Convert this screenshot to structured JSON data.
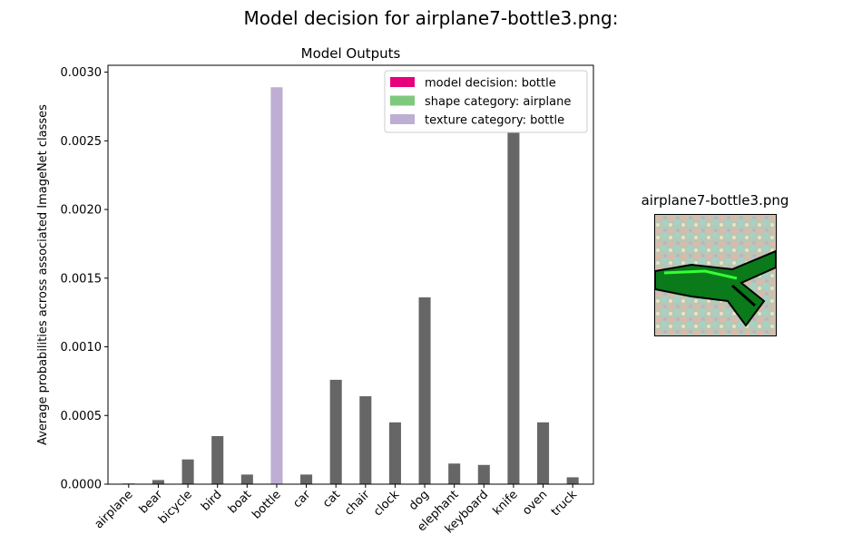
{
  "figure": {
    "suptitle": "Model decision for airplane7-bottle3.png:"
  },
  "chart_data": {
    "type": "bar",
    "title": "Model Outputs",
    "xlabel": "",
    "ylabel": "Average probabilities across associated ImageNet classes",
    "ylim": [
      0,
      0.00305
    ],
    "yticks": [
      "0.0000",
      "0.0005",
      "0.0010",
      "0.0015",
      "0.0020",
      "0.0025",
      "0.0030"
    ],
    "categories": [
      "airplane",
      "bear",
      "bicycle",
      "bird",
      "boat",
      "bottle",
      "car",
      "cat",
      "chair",
      "clock",
      "dog",
      "elephant",
      "keyboard",
      "knife",
      "oven",
      "truck"
    ],
    "values": [
      5e-06,
      3e-05,
      0.00018,
      0.00035,
      7e-05,
      0.00289,
      7e-05,
      0.00076,
      0.00064,
      0.00045,
      0.00136,
      0.00015,
      0.00014,
      0.00285,
      0.00045,
      5e-05
    ],
    "colors": {
      "default": "#666666",
      "model_decision": "#e6007e",
      "shape": "#7fc97f",
      "texture": "#beaed4"
    },
    "highlight": {
      "bottle": "texture"
    },
    "legend": {
      "placement": "top-right",
      "entries": [
        {
          "label": "model decision: bottle",
          "color": "#e6007e"
        },
        {
          "label": "shape category: airplane",
          "color": "#7fc97f"
        },
        {
          "label": "texture category: bottle",
          "color": "#beaed4"
        }
      ]
    },
    "grid": false
  },
  "thumbnail": {
    "title": "airplane7-bottle3.png"
  }
}
